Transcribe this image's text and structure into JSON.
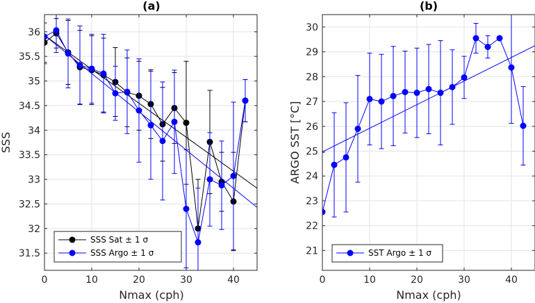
{
  "chart_data": [
    {
      "type": "line",
      "title": "(a)",
      "xlabel": "Nmax (cph)",
      "ylabel": "SSS",
      "xlim": [
        0,
        45
      ],
      "ylim": [
        31.15,
        36.35
      ],
      "xticks": [
        0,
        10,
        20,
        30,
        40
      ],
      "yticks": [
        31.5,
        32,
        32.5,
        33,
        33.5,
        34,
        34.5,
        35,
        35.5,
        36
      ],
      "grid": true,
      "legend_position": "bottom-left",
      "x": [
        0,
        2.5,
        5,
        7.5,
        10,
        12.5,
        15,
        17.5,
        20,
        22.5,
        25,
        27.5,
        30,
        32.5,
        35,
        37.5,
        40,
        42.5
      ],
      "series": [
        {
          "name": "SSS Sat ± 1 σ",
          "color": "#000000",
          "values": [
            35.78,
            35.97,
            35.58,
            35.28,
            35.22,
            35.12,
            34.98,
            34.77,
            34.7,
            34.53,
            34.12,
            34.45,
            34.15,
            32.0,
            33.76,
            32.95,
            32.55,
            34.6
          ],
          "err": [
            0.4,
            0.3,
            0.65,
            0.75,
            0.7,
            0.75,
            0.7,
            0.7,
            0.7,
            0.7,
            0.75,
            0.72,
            1.25,
            1.0,
            1.05,
            0.6,
            1.0,
            0.43
          ],
          "fit": {
            "x0": 0,
            "y0": 35.93,
            "x1": 45,
            "y1": 32.82,
            "color": "#000000"
          }
        },
        {
          "name": "SSS Argo ± 1 σ",
          "color": "#0000ff",
          "values": [
            35.9,
            36.03,
            35.56,
            35.32,
            35.25,
            35.15,
            34.75,
            34.78,
            34.4,
            34.1,
            33.78,
            34.17,
            32.4,
            31.72,
            33.0,
            32.88,
            33.07,
            34.6
          ],
          "err": [
            0.55,
            0.45,
            0.7,
            0.8,
            0.7,
            0.8,
            0.55,
            0.85,
            1.05,
            1.1,
            1.2,
            1.05,
            1.2,
            1.1,
            0.95,
            0.9,
            1.5,
            0.43
          ],
          "fit": {
            "x0": 0,
            "y0": 35.93,
            "x1": 45,
            "y1": 32.43,
            "color": "#0000ff"
          }
        }
      ]
    },
    {
      "type": "line",
      "title": "(b)",
      "xlabel": "Nmax (cph)",
      "ylabel": "ARGO SST [°C]",
      "xlim": [
        0,
        45
      ],
      "ylim": [
        20.2,
        30.5
      ],
      "xticks": [
        0,
        10,
        20,
        30,
        40
      ],
      "yticks": [
        21,
        22,
        23,
        24,
        25,
        26,
        27,
        28,
        29,
        30
      ],
      "grid": true,
      "legend_position": "bottom-left",
      "x": [
        0,
        2.5,
        5,
        7.5,
        10,
        12.5,
        15,
        17.5,
        20,
        22.5,
        25,
        27.5,
        30,
        32.5,
        35,
        37.5,
        40,
        42.5
      ],
      "series": [
        {
          "name": "SST Argo ± 1 σ",
          "color": "#0000ff",
          "values": [
            22.55,
            24.45,
            24.75,
            25.9,
            27.1,
            27.0,
            27.22,
            27.38,
            27.35,
            27.5,
            27.35,
            27.58,
            27.97,
            29.55,
            29.2,
            29.55,
            28.37,
            26.02
          ],
          "err": [
            2.4,
            2.1,
            2.2,
            2.15,
            1.85,
            1.9,
            2.0,
            1.65,
            1.8,
            1.8,
            2.1,
            1.5,
            0.85,
            0.6,
            0.45,
            0.0,
            2.25,
            1.58
          ],
          "fit": {
            "x0": 0,
            "y0": 24.97,
            "x1": 45,
            "y1": 29.25,
            "color": "#0000ff"
          }
        }
      ]
    }
  ]
}
